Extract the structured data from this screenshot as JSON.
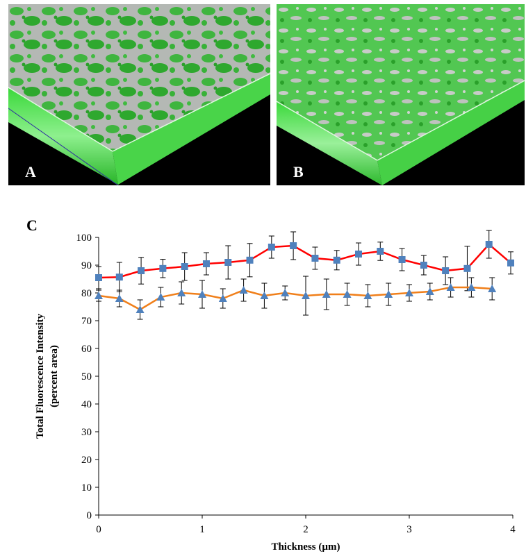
{
  "panels": {
    "a_label": "A",
    "b_label": "B",
    "c_label": "C"
  },
  "colors": {
    "series1_line": "#ff0000",
    "series2_line": "#f07f1a",
    "marker": "#4f81bd",
    "sample_green": "#35c035",
    "sample_grey": "#b6b9b6"
  },
  "chart_data": {
    "type": "line",
    "title": "",
    "xlabel": "Thickness (µm)",
    "ylabel_line1": "Total Fluorescence Intensity",
    "ylabel_line2": "(percent area)",
    "xlim": [
      0,
      4
    ],
    "ylim": [
      0,
      100
    ],
    "x_ticks": [
      "0",
      "1",
      "2",
      "3",
      "4"
    ],
    "y_ticks": [
      "0",
      "10",
      "20",
      "30",
      "40",
      "50",
      "60",
      "70",
      "80",
      "90",
      "100"
    ],
    "grid": false,
    "legend": "none",
    "series": [
      {
        "marker": "square",
        "x": [
          0,
          0.2,
          0.41,
          0.62,
          0.83,
          1.04,
          1.25,
          1.46,
          1.67,
          1.88,
          2.09,
          2.3,
          2.51,
          2.72,
          2.93,
          3.14,
          3.35,
          3.56,
          3.77,
          3.98
        ],
        "y": [
          85.5,
          85.7,
          88.0,
          88.8,
          89.5,
          90.5,
          91.0,
          91.8,
          96.5,
          97.0,
          92.5,
          91.8,
          94.0,
          95.0,
          92.0,
          90.0,
          88.0,
          88.8,
          97.5,
          90.8
        ],
        "err": [
          4.0,
          5.3,
          4.8,
          3.3,
          5.0,
          4.0,
          6.0,
          6.0,
          4.0,
          5.0,
          4.0,
          3.5,
          4.0,
          3.3,
          4.0,
          3.5,
          5.0,
          8.0,
          5.0,
          4.0
        ]
      },
      {
        "marker": "triangle",
        "x": [
          0,
          0.2,
          0.4,
          0.6,
          0.8,
          1.0,
          1.2,
          1.4,
          1.6,
          1.8,
          2.0,
          2.2,
          2.4,
          2.6,
          2.8,
          3.0,
          3.2,
          3.4,
          3.6,
          3.8
        ],
        "y": [
          79.0,
          78.0,
          74.0,
          78.5,
          80.0,
          79.5,
          78.0,
          81.0,
          79.0,
          80.0,
          79.0,
          79.5,
          79.5,
          79.0,
          79.5,
          80.0,
          80.5,
          82.0,
          82.0,
          81.5
        ],
        "err": [
          2.0,
          3.0,
          3.5,
          3.5,
          4.0,
          5.0,
          3.5,
          4.0,
          4.5,
          2.5,
          7.0,
          5.5,
          4.0,
          4.0,
          4.0,
          3.0,
          3.0,
          3.5,
          3.5,
          4.0
        ]
      }
    ]
  }
}
